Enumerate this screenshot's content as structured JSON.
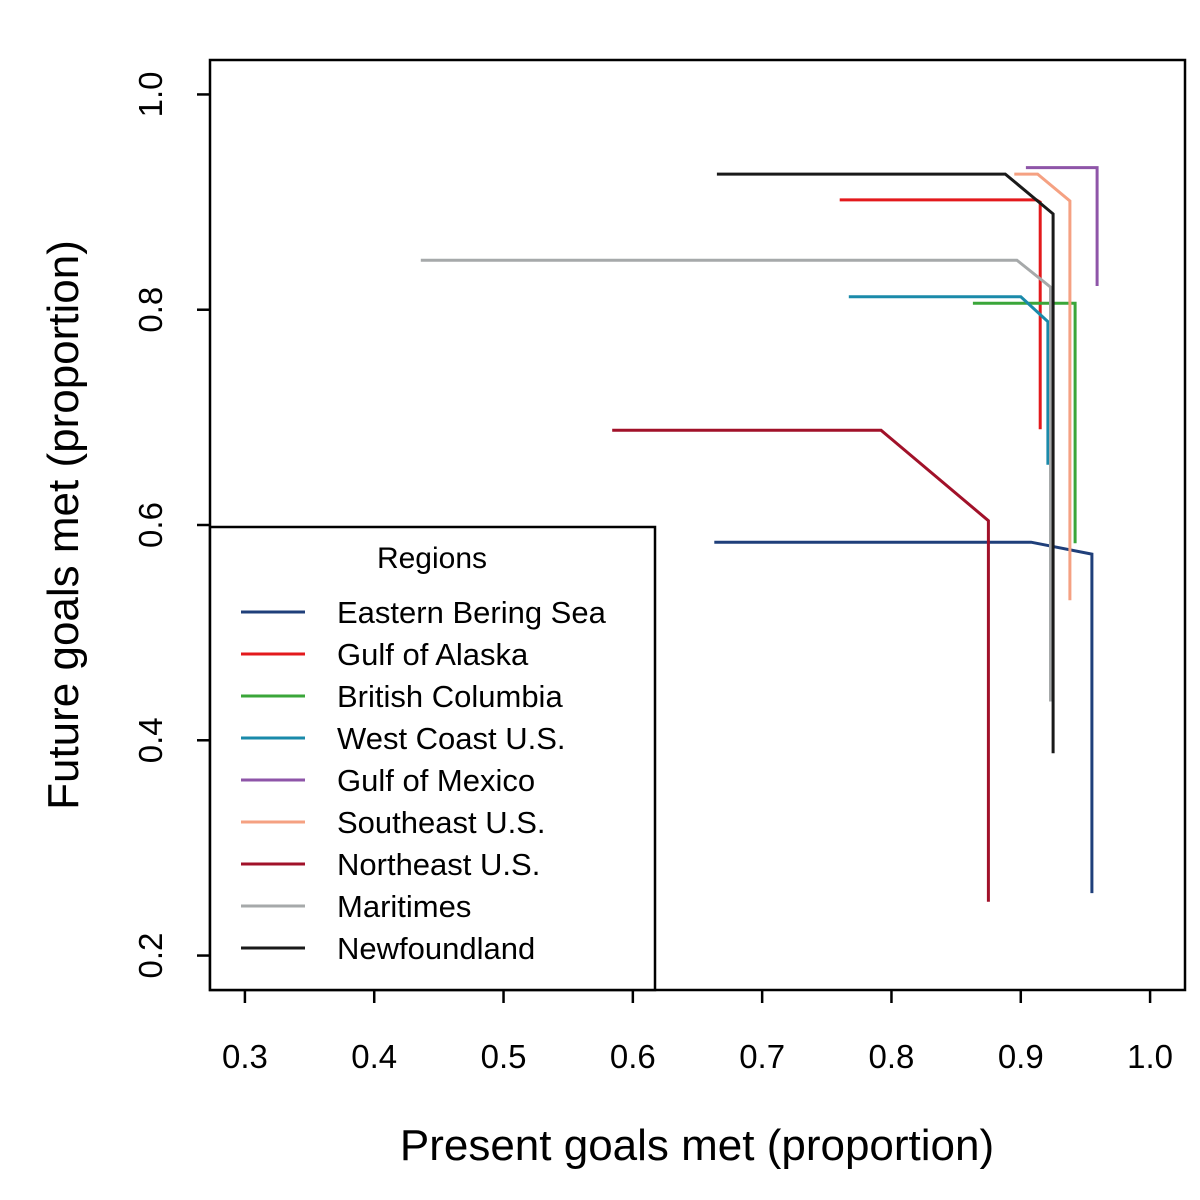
{
  "chart_data": {
    "type": "line",
    "title": "",
    "xlabel": "Present goals met (proportion)",
    "ylabel": "Future goals met (proportion)",
    "xlim": [
      0.273,
      1.027
    ],
    "ylim": [
      0.168,
      1.032
    ],
    "xticks": [
      "0.3",
      "0.4",
      "0.5",
      "0.6",
      "0.7",
      "0.8",
      "0.9",
      "1.0"
    ],
    "yticks": [
      "0.2",
      "0.4",
      "0.6",
      "0.8",
      "1.0"
    ],
    "grid": false,
    "legend": {
      "title": "Regions",
      "position": "bottom-left"
    },
    "series": [
      {
        "name": "Eastern Bering Sea",
        "color": "#1f3f7a",
        "x": [
          0.663,
          0.908,
          0.955,
          0.955
        ],
        "y": [
          0.584,
          0.584,
          0.573,
          0.258
        ]
      },
      {
        "name": "Gulf of Alaska",
        "color": "#e3191c",
        "x": [
          0.76,
          0.912,
          0.915,
          0.915
        ],
        "y": [
          0.902,
          0.902,
          0.9,
          0.689
        ]
      },
      {
        "name": "British Columbia",
        "color": "#3aa639",
        "x": [
          0.863,
          0.942,
          0.942
        ],
        "y": [
          0.806,
          0.806,
          0.583
        ]
      },
      {
        "name": "West Coast U.S.",
        "color": "#1a8aaa",
        "x": [
          0.767,
          0.9,
          0.921,
          0.921
        ],
        "y": [
          0.812,
          0.812,
          0.789,
          0.656
        ]
      },
      {
        "name": "Gulf of Mexico",
        "color": "#8e55a8",
        "x": [
          0.904,
          0.959,
          0.959
        ],
        "y": [
          0.932,
          0.932,
          0.822
        ]
      },
      {
        "name": "Southeast U.S.",
        "color": "#f5a182",
        "x": [
          0.895,
          0.913,
          0.938,
          0.938
        ],
        "y": [
          0.926,
          0.926,
          0.901,
          0.53
        ]
      },
      {
        "name": "Northeast U.S.",
        "color": "#a11129",
        "x": [
          0.584,
          0.792,
          0.875,
          0.875
        ],
        "y": [
          0.688,
          0.688,
          0.604,
          0.25
        ]
      },
      {
        "name": "Maritimes",
        "color": "#a6a9aa",
        "x": [
          0.436,
          0.897,
          0.923,
          0.923
        ],
        "y": [
          0.846,
          0.846,
          0.821,
          0.436
        ]
      },
      {
        "name": "Newfoundland",
        "color": "#1a1a1a",
        "x": [
          0.665,
          0.888,
          0.925,
          0.925
        ],
        "y": [
          0.926,
          0.926,
          0.889,
          0.388
        ]
      }
    ]
  }
}
